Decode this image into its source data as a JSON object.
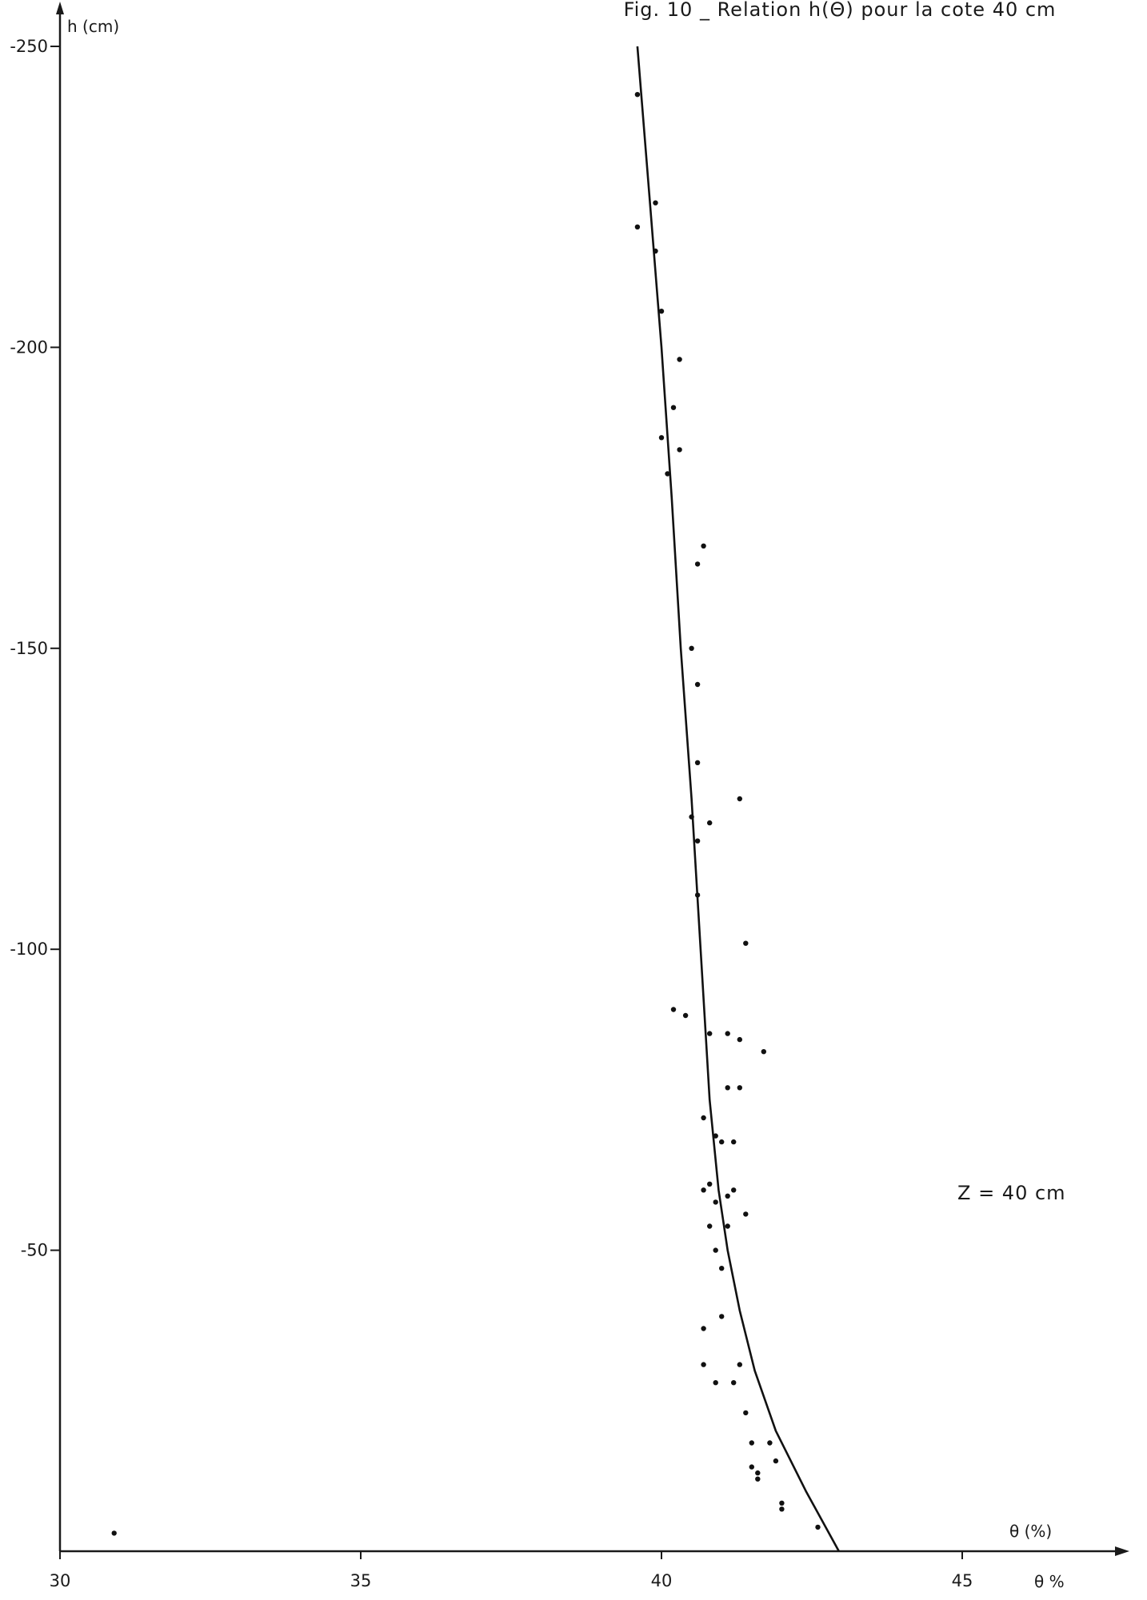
{
  "chart_data": {
    "type": "scatter",
    "title": "Fig. 10 _ Relation  h(Θ) pour  la  cote 40 cm",
    "xlabel": "θ (%)",
    "xlabel_end": "θ %",
    "ylabel": "h (cm)",
    "xlim": [
      30,
      48
    ],
    "ylim": [
      0,
      -250
    ],
    "x_ticks": [
      30,
      35,
      40,
      45
    ],
    "x_tick_labels": [
      "30",
      "35",
      "40",
      "45"
    ],
    "y_ticks": [
      -50,
      -100,
      -150,
      -200,
      -250
    ],
    "y_tick_labels": [
      "-50",
      "-100",
      "-150",
      "-200",
      "-250"
    ],
    "grid": false,
    "annotation": "Z  = 40 cm",
    "series": [
      {
        "kind": "points",
        "points": [
          [
            39.6,
            -242
          ],
          [
            39.6,
            -220
          ],
          [
            39.9,
            -224
          ],
          [
            39.9,
            -216
          ],
          [
            40.0,
            -206
          ],
          [
            40.3,
            -198
          ],
          [
            40.2,
            -190
          ],
          [
            40.0,
            -185
          ],
          [
            40.3,
            -183
          ],
          [
            40.1,
            -179
          ],
          [
            40.7,
            -167
          ],
          [
            40.6,
            -164
          ],
          [
            40.5,
            -150
          ],
          [
            40.6,
            -144
          ],
          [
            40.6,
            -131
          ],
          [
            40.5,
            -122
          ],
          [
            40.8,
            -121
          ],
          [
            40.6,
            -118
          ],
          [
            40.6,
            -109
          ],
          [
            41.3,
            -125
          ],
          [
            41.4,
            -101
          ],
          [
            40.2,
            -90
          ],
          [
            40.4,
            -89
          ],
          [
            40.8,
            -86
          ],
          [
            41.1,
            -86
          ],
          [
            41.3,
            -85
          ],
          [
            41.7,
            -83
          ],
          [
            41.1,
            -77
          ],
          [
            41.3,
            -77
          ],
          [
            40.7,
            -72
          ],
          [
            40.9,
            -69
          ],
          [
            41.0,
            -68
          ],
          [
            41.2,
            -68
          ],
          [
            40.8,
            -61
          ],
          [
            40.7,
            -60
          ],
          [
            40.9,
            -58
          ],
          [
            41.1,
            -59
          ],
          [
            41.2,
            -60
          ],
          [
            41.4,
            -56
          ],
          [
            40.8,
            -54
          ],
          [
            41.1,
            -54
          ],
          [
            40.9,
            -50
          ],
          [
            41.0,
            -47
          ],
          [
            40.7,
            -37
          ],
          [
            41.0,
            -39
          ],
          [
            40.7,
            -31
          ],
          [
            40.9,
            -28
          ],
          [
            41.2,
            -28
          ],
          [
            41.3,
            -31
          ],
          [
            41.4,
            -23
          ],
          [
            41.5,
            -18
          ],
          [
            41.5,
            -14
          ],
          [
            41.6,
            -12
          ],
          [
            41.8,
            -18
          ],
          [
            41.9,
            -15
          ],
          [
            41.6,
            -13
          ],
          [
            42.0,
            -8
          ],
          [
            42.0,
            -7
          ],
          [
            42.6,
            -4
          ],
          [
            30.9,
            -3
          ]
        ]
      },
      {
        "kind": "curve",
        "points": [
          [
            39.6,
            -250
          ],
          [
            39.8,
            -225
          ],
          [
            40.0,
            -200
          ],
          [
            40.17,
            -175
          ],
          [
            40.32,
            -150
          ],
          [
            40.5,
            -125
          ],
          [
            40.65,
            -100
          ],
          [
            40.8,
            -75
          ],
          [
            40.95,
            -60
          ],
          [
            41.1,
            -50
          ],
          [
            41.3,
            -40
          ],
          [
            41.55,
            -30
          ],
          [
            41.9,
            -20
          ],
          [
            42.4,
            -10
          ],
          [
            42.95,
            0
          ]
        ]
      }
    ]
  }
}
